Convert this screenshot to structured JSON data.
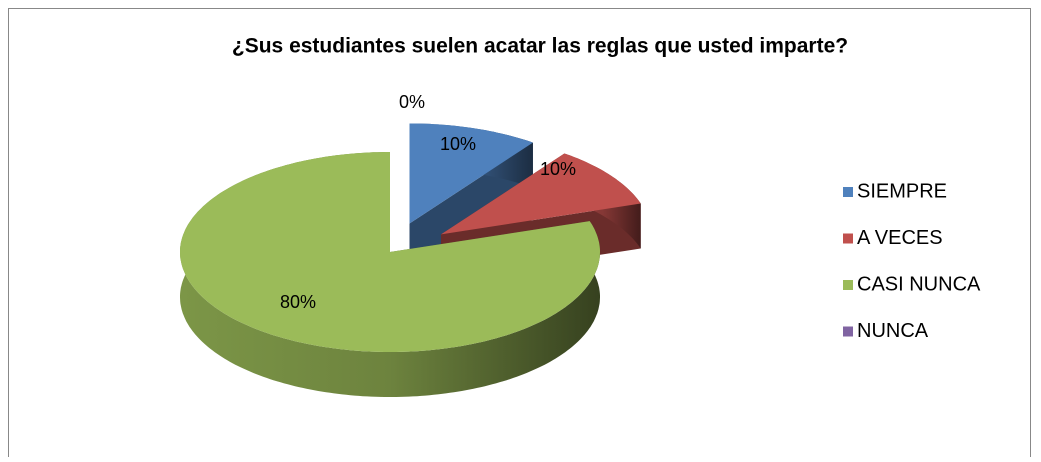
{
  "chart_data": {
    "type": "pie3d",
    "title": "¿Sus estudiantes suelen acatar las reglas que usted imparte?",
    "categories": [
      "SIEMPRE",
      "A VECES",
      "CASI NUNCA",
      "NUNCA"
    ],
    "values": [
      10,
      10,
      80,
      0
    ],
    "value_labels": [
      "10%",
      "10%",
      "80%",
      "0%"
    ],
    "colors": [
      "#4f81bd",
      "#c0504d",
      "#9bbb59",
      "#8064a2"
    ],
    "legend": "right"
  }
}
